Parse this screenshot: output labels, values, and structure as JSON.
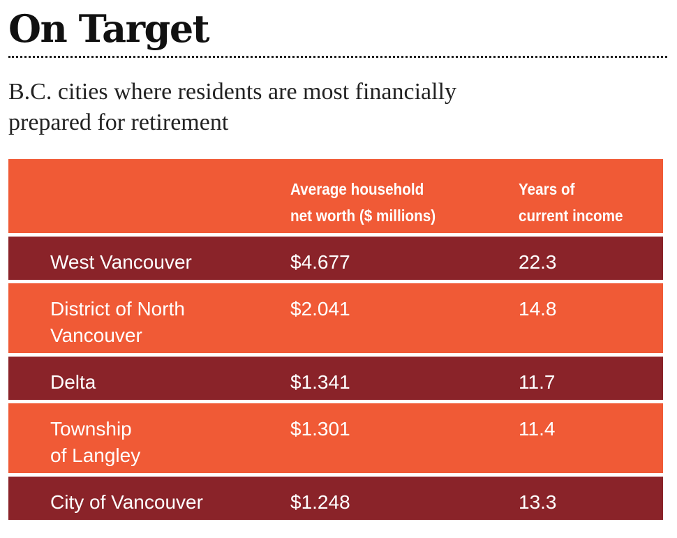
{
  "title": "On Target",
  "subtitle_lines": [
    "B.C. cities where residents are most financially",
    "prepared for retirement"
  ],
  "chart_data": {
    "type": "table",
    "title": "On Target",
    "subtitle": "B.C. cities where residents are most financially prepared for retirement",
    "columns": [
      "",
      "Average household net worth ($ millions)",
      "Years of current income"
    ],
    "column_header_lines": {
      "worth": [
        "Average household",
        "net worth ($ millions)"
      ],
      "years": [
        "Years of",
        "current income"
      ]
    },
    "rows": [
      {
        "city_lines": [
          "West Vancouver"
        ],
        "net_worth": "$4.677",
        "years_of_income": "22.3"
      },
      {
        "city_lines": [
          "District of North",
          "Vancouver"
        ],
        "net_worth": "$2.041",
        "years_of_income": "14.8"
      },
      {
        "city_lines": [
          "Delta"
        ],
        "net_worth": "$1.341",
        "years_of_income": "11.7"
      },
      {
        "city_lines": [
          "Township",
          "of Langley"
        ],
        "net_worth": "$1.301",
        "years_of_income": "11.4"
      },
      {
        "city_lines": [
          "City of Vancouver"
        ],
        "net_worth": "$1.248",
        "years_of_income": "13.3"
      }
    ]
  },
  "colors": {
    "header_orange": "#f05a36",
    "row_dark": "#8a2329",
    "row_light": "#f05a36",
    "text_on_rows": "#ffffff",
    "title_text": "#111111"
  }
}
